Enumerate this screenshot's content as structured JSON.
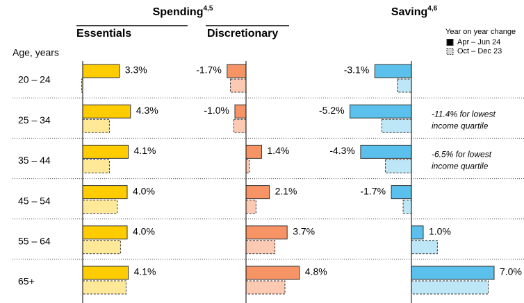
{
  "chart_data": {
    "type": "bar",
    "orientation": "horizontal",
    "y_label": "Age, years",
    "categories": [
      "20 – 24",
      "25 – 34",
      "35 – 44",
      "45 – 54",
      "55 – 64",
      "65+"
    ],
    "legend_title": "Year on year change",
    "legend": "upper right",
    "series": [
      {
        "name": "Apr – Jun 24",
        "color": "#000000",
        "dashed": false
      },
      {
        "name": "Oct – Dec 23",
        "color": "#d9d9d9",
        "dashed": true
      }
    ],
    "groups": [
      {
        "title": "Spending",
        "superscript": "4,5"
      },
      {
        "title": "Saving",
        "superscript": "4,6"
      }
    ],
    "panels": [
      {
        "title": "Essentials",
        "xlim": [
          0,
          10
        ],
        "series": [
          {
            "color": "#ffcc00",
            "values": [
              3.3,
              4.3,
              4.1,
              4.0,
              4.0,
              4.1
            ],
            "value_labels": [
              "3.3%",
              "4.3%",
              "4.1%",
              "4.0%",
              "4.0%",
              "4.1%"
            ]
          },
          {
            "color": "#ffe999",
            "values": [
              -0.1,
              2.4,
              2.4,
              3.1,
              3.4,
              3.9
            ]
          }
        ]
      },
      {
        "title": "Discretionary",
        "xlim": [
          -3,
          7
        ],
        "series": [
          {
            "color": "#f79466",
            "values": [
              -1.7,
              -1.0,
              1.4,
              2.1,
              3.7,
              4.8
            ],
            "value_labels": [
              "-1.7%",
              "-1.0%",
              "1.4%",
              "2.1%",
              "3.7%",
              "4.8%"
            ]
          },
          {
            "color": "#fcc9b3",
            "values": [
              -1.4,
              -1.1,
              0.3,
              0.9,
              2.6,
              3.5
            ]
          }
        ]
      },
      {
        "xlim": [
          -6,
          9
        ],
        "series": [
          {
            "color": "#5bc0eb",
            "values": [
              -3.1,
              -5.2,
              -4.3,
              -1.7,
              1.0,
              7.0
            ],
            "value_labels": [
              "-3.1%",
              "-5.2%",
              "-4.3%",
              "-1.7%",
              "1.0%",
              "7.0%"
            ]
          },
          {
            "color": "#bde6f6",
            "values": [
              -1.2,
              -2.5,
              -2.2,
              -0.7,
              2.2,
              6.5
            ]
          }
        ]
      }
    ],
    "annotations": [
      {
        "lines": [
          "-11.4% for lowest",
          "income quartile"
        ]
      },
      {
        "lines": [
          "-6.5% for lowest",
          "income quartile"
        ]
      }
    ]
  }
}
